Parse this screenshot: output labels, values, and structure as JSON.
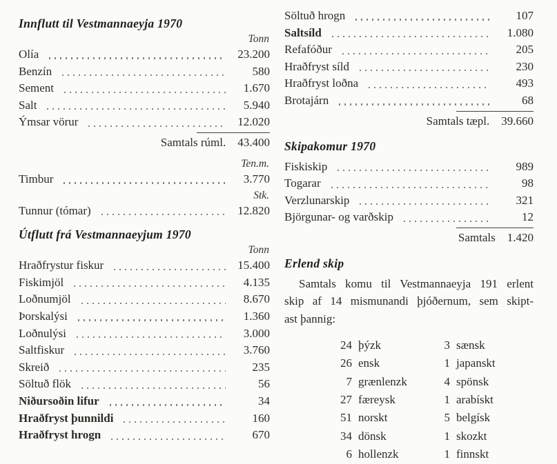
{
  "left": {
    "imports": {
      "title": "Innflutt til Vestmannaeyja 1970",
      "unit": "Tonn",
      "rows": [
        {
          "label": "Olía",
          "value": "23.200"
        },
        {
          "label": "Benzín",
          "value": "580"
        },
        {
          "label": "Sement",
          "value": "1.670"
        },
        {
          "label": "Salt",
          "value": "5.940"
        },
        {
          "label": "Ýmsar vörur",
          "value": "12.020"
        }
      ],
      "total_label": "Samtals rúml.",
      "total_value": "43.400"
    },
    "timber": {
      "unit": "Ten.m.",
      "label": "Timbur",
      "value": "3.770"
    },
    "barrels": {
      "unit": "Stk.",
      "label": "Tunnur (tómar)",
      "value": "12.820"
    },
    "exports": {
      "title": "Útflutt frá Vestmannaeyjum 1970",
      "unit": "Tonn",
      "rows": [
        {
          "label": "Hraðfrystur fiskur",
          "value": "15.400"
        },
        {
          "label": "Fiskimjöl",
          "value": "4.135"
        },
        {
          "label": "Loðnumjöl",
          "value": "8.670"
        },
        {
          "label": "Þorskalýsi",
          "value": "1.360"
        },
        {
          "label": "Loðnulýsi",
          "value": "3.000"
        },
        {
          "label": "Saltfiskur",
          "value": "3.760"
        },
        {
          "label": "Skreið",
          "value": "235"
        },
        {
          "label": "Söltuð flök",
          "value": "56"
        },
        {
          "label": "Niðursoðin lifur",
          "value": "34",
          "bold": true
        },
        {
          "label": "Hraðfryst þunnildi",
          "value": "160",
          "bold": true
        },
        {
          "label": "Hraðfryst hrogn",
          "value": "670",
          "bold": true
        }
      ]
    }
  },
  "right": {
    "exports_cont": {
      "rows": [
        {
          "label": "Söltuð hrogn",
          "value": "107"
        },
        {
          "label": "Saltsíld",
          "value": "1.080",
          "bold": true
        },
        {
          "label": "Refafóður",
          "value": "205"
        },
        {
          "label": "Hraðfryst síld",
          "value": "230"
        },
        {
          "label": "Hraðfryst loðna",
          "value": "493"
        },
        {
          "label": "Brotajárn",
          "value": "68"
        }
      ],
      "total_label": "Samtals tæpl.",
      "total_value": "39.660"
    },
    "ship_arrivals": {
      "title": "Skipakomur 1970",
      "rows": [
        {
          "label": "Fiskiskip",
          "value": "989"
        },
        {
          "label": "Togarar",
          "value": "98"
        },
        {
          "label": "Verzlunarskip",
          "value": "321"
        },
        {
          "label": "Björgunar- og varðskip",
          "value": "12"
        }
      ],
      "total_label": "Samtals",
      "total_value": "1.420"
    },
    "foreign_ships": {
      "title": "Erlend skip",
      "paragraph_lines": [
        "Samtals komu til Vestmannaeyja 191 erlent",
        "skip af 14 mismunandi þjóðernum, sem skipt-",
        "ast þannig:"
      ],
      "list": [
        {
          "count1": "24",
          "name1": "þýzk",
          "count2": "3",
          "name2": "sænsk"
        },
        {
          "count1": "26",
          "name1": "ensk",
          "count2": "1",
          "name2": "japanskt"
        },
        {
          "count1": "7",
          "name1": "grænlenzk",
          "count2": "4",
          "name2": "spönsk"
        },
        {
          "count1": "27",
          "name1": "færeysk",
          "count2": "1",
          "name2": "arabískt"
        },
        {
          "count1": "51",
          "name1": "norskt",
          "count2": "5",
          "name2": "belgísk"
        },
        {
          "count1": "34",
          "name1": "dönsk",
          "count2": "1",
          "name2": "skozkt"
        },
        {
          "count1": "6",
          "name1": "hollenzk",
          "count2": "1",
          "name2": "finnskt"
        }
      ]
    }
  }
}
